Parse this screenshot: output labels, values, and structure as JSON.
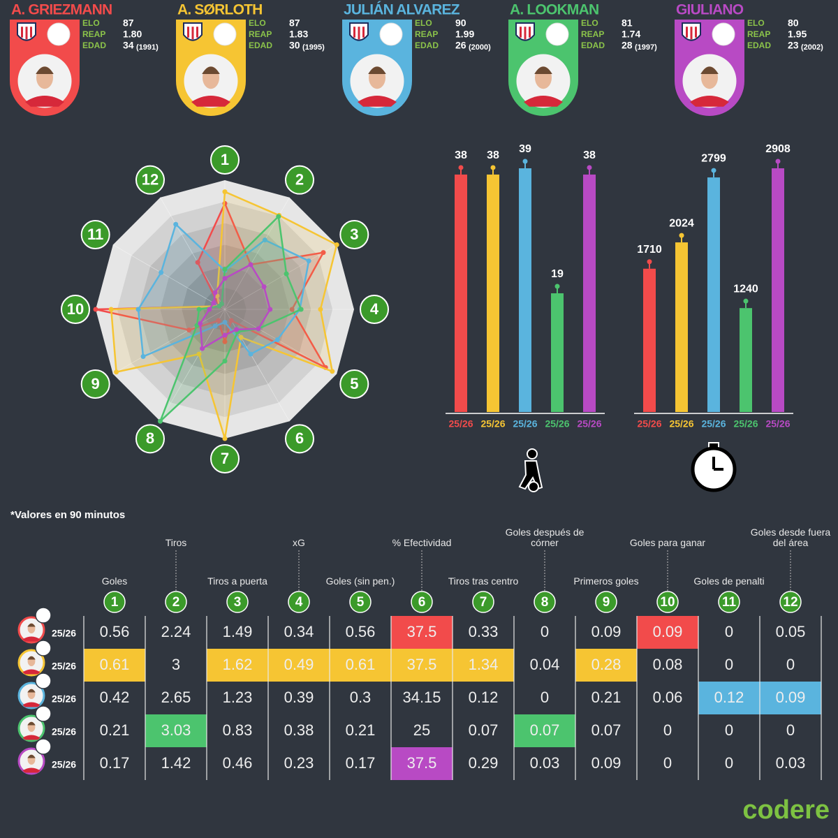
{
  "players": [
    {
      "name": "A. GRIEZMANN",
      "color": "#f24b4b",
      "elo": 87,
      "reap": "1.80",
      "edad": 34,
      "nacimiento": "(1991)"
    },
    {
      "name": "A. SØRLOTH",
      "color": "#f6c533",
      "elo": 87,
      "reap": "1.83",
      "edad": 30,
      "nacimiento": "(1995)"
    },
    {
      "name": "JULIÁN ALVAREZ",
      "color": "#5ab4de",
      "elo": 90,
      "reap": "1.99",
      "edad": 26,
      "nacimiento": "(2000)"
    },
    {
      "name": "A. LOOKMAN",
      "color": "#4cc46e",
      "elo": 81,
      "reap": "1.74",
      "edad": 28,
      "nacimiento": "(1997)"
    },
    {
      "name": "GIULIANO",
      "color": "#b84ac4",
      "elo": 80,
      "reap": "1.95",
      "edad": 23,
      "nacimiento": "(2002)"
    }
  ],
  "stat_labels": {
    "elo": "ELO",
    "reap": "REAP",
    "edad": "EDAD"
  },
  "chart_data": [
    {
      "type": "radar",
      "categories": [
        "1",
        "2",
        "3",
        "4",
        "5",
        "6",
        "7",
        "8",
        "9",
        "10",
        "11",
        "12"
      ],
      "rlim": [
        0,
        1
      ],
      "series": [
        {
          "color": "#f24b4b",
          "values": [
            0.82,
            0.4,
            0.88,
            0.52,
            0.9,
            0.1,
            0.25,
            0.1,
            0.32,
            1.0,
            0.05,
            0.42
          ]
        },
        {
          "color": "#f6c533",
          "values": [
            0.91,
            0.84,
            1.0,
            0.74,
            0.96,
            0.25,
            1.0,
            0.4,
            0.97,
            0.88,
            0.05,
            0.12
          ]
        },
        {
          "color": "#5ab4de",
          "values": [
            0.3,
            0.62,
            0.75,
            0.58,
            0.47,
            0.4,
            0.1,
            0.15,
            0.73,
            0.67,
            0.57,
            0.76
          ]
        },
        {
          "color": "#4cc46e",
          "values": [
            0.31,
            0.83,
            0.55,
            0.59,
            0.3,
            0.2,
            0.4,
            1.0,
            0.25,
            0.2,
            0.05,
            0.05
          ]
        },
        {
          "color": "#b84ac4",
          "values": [
            0.24,
            0.4,
            0.35,
            0.35,
            0.3,
            0.18,
            0.2,
            0.35,
            0.22,
            0.12,
            0.1,
            0.15
          ]
        }
      ]
    },
    {
      "type": "bar",
      "categories": [
        "25/26",
        "25/26",
        "25/26",
        "25/26",
        "25/26"
      ],
      "values": [
        38,
        38,
        39,
        19,
        38
      ],
      "colors": [
        "#f24b4b",
        "#f6c533",
        "#5ab4de",
        "#4cc46e",
        "#b84ac4"
      ],
      "ylim": [
        0,
        39
      ]
    },
    {
      "type": "bar",
      "categories": [
        "25/26",
        "25/26",
        "25/26",
        "25/26",
        "25/26"
      ],
      "values": [
        1710,
        2024,
        2799,
        1240,
        2908
      ],
      "colors": [
        "#f24b4b",
        "#f6c533",
        "#5ab4de",
        "#4cc46e",
        "#b84ac4"
      ],
      "ylim": [
        0,
        2908
      ]
    }
  ],
  "note": "*Valores en 90 minutos",
  "table": {
    "columns": [
      {
        "num": "1",
        "label": "Goles"
      },
      {
        "num": "2",
        "label": "Tiros"
      },
      {
        "num": "3",
        "label": "Tiros a puerta"
      },
      {
        "num": "4",
        "label": "xG"
      },
      {
        "num": "5",
        "label": "Goles (sin pen.)"
      },
      {
        "num": "6",
        "label": "% Efectividad"
      },
      {
        "num": "7",
        "label": "Tiros tras centro"
      },
      {
        "num": "8",
        "label": "Goles después de córner"
      },
      {
        "num": "9",
        "label": "Primeros goles"
      },
      {
        "num": "10",
        "label": "Goles para ganar"
      },
      {
        "num": "11",
        "label": "Goles de penalti"
      },
      {
        "num": "12",
        "label": "Goles desde fuera del área"
      }
    ],
    "rows": [
      {
        "season": "25/26",
        "values": [
          "0.56",
          "2.24",
          "1.49",
          "0.34",
          "0.56",
          "37.5",
          "0.33",
          "0",
          "0.09",
          "0.09",
          "0",
          "0.05"
        ],
        "highlight": [
          5,
          9
        ]
      },
      {
        "season": "25/26",
        "values": [
          "0.61",
          "3",
          "1.62",
          "0.49",
          "0.61",
          "37.5",
          "1.34",
          "0.04",
          "0.28",
          "0.08",
          "0",
          "0"
        ],
        "highlight": [
          0,
          2,
          3,
          4,
          5,
          6,
          8
        ]
      },
      {
        "season": "25/26",
        "values": [
          "0.42",
          "2.65",
          "1.23",
          "0.39",
          "0.3",
          "34.15",
          "0.12",
          "0",
          "0.21",
          "0.06",
          "0.12",
          "0.09"
        ],
        "highlight": [
          10,
          11
        ]
      },
      {
        "season": "25/26",
        "values": [
          "0.21",
          "3.03",
          "0.83",
          "0.38",
          "0.21",
          "25",
          "0.07",
          "0.07",
          "0.07",
          "0",
          "0",
          "0"
        ],
        "highlight": [
          1,
          7
        ]
      },
      {
        "season": "25/26",
        "values": [
          "0.17",
          "1.42",
          "0.46",
          "0.23",
          "0.17",
          "37.5",
          "0.29",
          "0.03",
          "0.09",
          "0",
          "0",
          "0.03"
        ],
        "highlight": [
          5
        ]
      }
    ]
  },
  "brand": "codere"
}
